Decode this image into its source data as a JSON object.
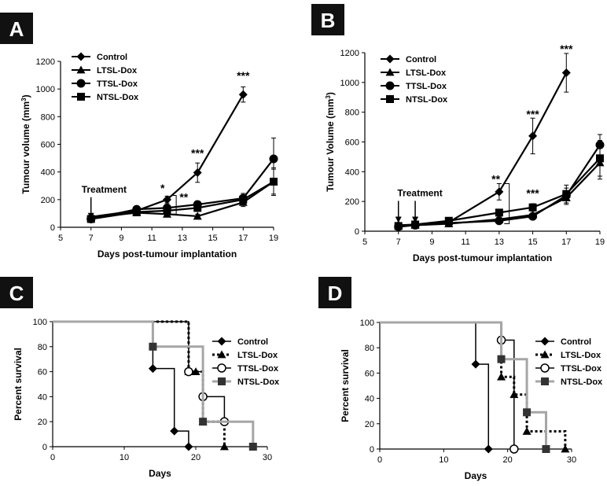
{
  "chart_data": [
    {
      "panel": "A",
      "type": "line",
      "xlabel": "Days post-tumour implantation",
      "ylabel": "Tumour volume (mm",
      "ylabel_sup": "3",
      "ylabel_end": ")",
      "xlim": [
        5,
        19
      ],
      "ylim": [
        0,
        1200
      ],
      "xticks": [
        "5",
        "7",
        "9",
        "11",
        "13",
        "15",
        "17",
        "19"
      ],
      "yticks": [
        "0",
        "200",
        "400",
        "600",
        "800",
        "1000",
        "1200"
      ],
      "legend": "top-left",
      "series": [
        {
          "name": "Control",
          "marker": "diamond",
          "x": [
            7,
            10,
            12,
            14,
            17
          ],
          "y": [
            75,
            120,
            200,
            395,
            960
          ],
          "err": [
            10,
            15,
            25,
            70,
            55
          ]
        },
        {
          "name": "LTSL-Dox",
          "marker": "triangle",
          "x": [
            7,
            10,
            12,
            14,
            17,
            19
          ],
          "y": [
            70,
            105,
            95,
            80,
            180,
            330
          ],
          "err": [
            10,
            10,
            15,
            15,
            30,
            90
          ]
        },
        {
          "name": "TTSL-Dox",
          "marker": "circle",
          "x": [
            7,
            10,
            12,
            14,
            17,
            19
          ],
          "y": [
            60,
            130,
            140,
            165,
            210,
            495
          ],
          "err": [
            10,
            15,
            20,
            25,
            35,
            150
          ]
        },
        {
          "name": "NTSL-Dox",
          "marker": "square",
          "x": [
            7,
            10,
            12,
            14,
            17,
            19
          ],
          "y": [
            60,
            110,
            120,
            140,
            200,
            330
          ],
          "err": [
            10,
            15,
            20,
            25,
            35,
            100
          ]
        }
      ],
      "annotations": [
        {
          "text": "Treatment",
          "x": 7,
          "y": 240
        },
        {
          "text": "*",
          "x": 11.7,
          "y": 255
        },
        {
          "text": "**",
          "x": 13.1,
          "y": 190
        },
        {
          "text": "***",
          "x": 14,
          "y": 510
        },
        {
          "text": "***",
          "x": 17,
          "y": 1070
        }
      ]
    },
    {
      "panel": "B",
      "type": "line",
      "xlabel": "Days post-tumour implantation",
      "ylabel": "Tumour Volume  (mm",
      "ylabel_sup": "3",
      "ylabel_end": ")",
      "xlim": [
        5,
        19
      ],
      "ylim": [
        0,
        1200
      ],
      "xticks": [
        "5",
        "7",
        "9",
        "11",
        "13",
        "15",
        "17",
        "19"
      ],
      "yticks": [
        "0",
        "200",
        "400",
        "600",
        "800",
        "1000",
        "1200"
      ],
      "legend": "top-left",
      "series": [
        {
          "name": "Control",
          "marker": "diamond",
          "x": [
            7,
            8,
            10,
            13,
            15,
            17
          ],
          "y": [
            40,
            45,
            60,
            265,
            640,
            1065
          ],
          "err": [
            10,
            10,
            10,
            55,
            120,
            130
          ]
        },
        {
          "name": "LTSL-Dox",
          "marker": "triangle",
          "x": [
            7,
            8,
            10,
            13,
            15,
            17,
            19
          ],
          "y": [
            35,
            40,
            50,
            80,
            110,
            225,
            460
          ],
          "err": [
            10,
            10,
            10,
            15,
            25,
            45,
            110
          ]
        },
        {
          "name": "TTSL-Dox",
          "marker": "circle",
          "x": [
            7,
            8,
            10,
            13,
            15,
            17,
            19
          ],
          "y": [
            30,
            40,
            55,
            70,
            100,
            240,
            580
          ],
          "err": [
            10,
            10,
            10,
            15,
            20,
            50,
            70
          ]
        },
        {
          "name": "NTSL-Dox",
          "marker": "square",
          "x": [
            7,
            8,
            10,
            13,
            15,
            17,
            19
          ],
          "y": [
            35,
            45,
            70,
            125,
            160,
            250,
            490
          ],
          "err": [
            10,
            10,
            10,
            20,
            25,
            60,
            120
          ]
        }
      ],
      "annotations": [
        {
          "text": "Treatment",
          "x": 7.5,
          "y": 225
        },
        {
          "text": "**",
          "x": 12.8,
          "y": 325
        },
        {
          "text": "***",
          "x": 15,
          "y": 760
        },
        {
          "text": "***",
          "x": 17,
          "y": 1200
        },
        {
          "text": "***",
          "x": 15,
          "y": 230
        }
      ]
    },
    {
      "panel": "C",
      "type": "line",
      "step": true,
      "xlabel": "Days",
      "ylabel": "Percent survival",
      "xlim": [
        0,
        30
      ],
      "ylim": [
        0,
        100
      ],
      "xticks": [
        "0",
        "10",
        "20",
        "30"
      ],
      "yticks": [
        "0",
        "20",
        "40",
        "60",
        "80",
        "100"
      ],
      "legend": "right",
      "series": [
        {
          "name": "Control",
          "style": "solid",
          "color": "#000000",
          "marker": "diamond",
          "x": [
            0,
            14,
            17,
            19
          ],
          "y": [
            100,
            62.5,
            12.5,
            0
          ]
        },
        {
          "name": "LTSL-Dox",
          "style": "dotted",
          "color": "#000000",
          "marker": "triangle",
          "x": [
            0,
            19,
            20,
            21,
            24
          ],
          "y": [
            100,
            60,
            60,
            20,
            0
          ]
        },
        {
          "name": "TTSL-Dox",
          "style": "solid",
          "color": "#000000",
          "marker": "circle-open",
          "x": [
            0,
            19,
            21,
            24
          ],
          "y": [
            100,
            60,
            40,
            20
          ]
        },
        {
          "name": "NTSL-Dox",
          "style": "solid",
          "color": "#a6a6a6",
          "marker": "square",
          "x": [
            0,
            14,
            21,
            28
          ],
          "y": [
            100,
            80,
            20,
            0
          ]
        }
      ]
    },
    {
      "panel": "D",
      "type": "line",
      "step": true,
      "xlabel": "Days",
      "ylabel": "Percent survival",
      "xlim": [
        0,
        30
      ],
      "ylim": [
        0,
        100
      ],
      "xticks": [
        "0",
        "10",
        "20",
        "30"
      ],
      "yticks": [
        "0",
        "20",
        "40",
        "60",
        "80",
        "100"
      ],
      "legend": "right",
      "series": [
        {
          "name": "Control",
          "style": "solid",
          "color": "#000000",
          "marker": "diamond",
          "x": [
            0,
            15,
            17
          ],
          "y": [
            100,
            67,
            0
          ]
        },
        {
          "name": "LTSL-Dox",
          "style": "dotted",
          "color": "#000000",
          "marker": "triangle",
          "x": [
            0,
            19,
            21,
            23,
            29
          ],
          "y": [
            100,
            57,
            43,
            14,
            0
          ]
        },
        {
          "name": "TTSL-Dox",
          "style": "solid",
          "color": "#000000",
          "marker": "circle-open",
          "x": [
            0,
            19,
            21
          ],
          "y": [
            100,
            86,
            0
          ]
        },
        {
          "name": "NTSL-Dox",
          "style": "solid",
          "color": "#a6a6a6",
          "marker": "square",
          "x": [
            0,
            19,
            23,
            26
          ],
          "y": [
            100,
            71,
            29,
            0
          ]
        }
      ]
    }
  ]
}
